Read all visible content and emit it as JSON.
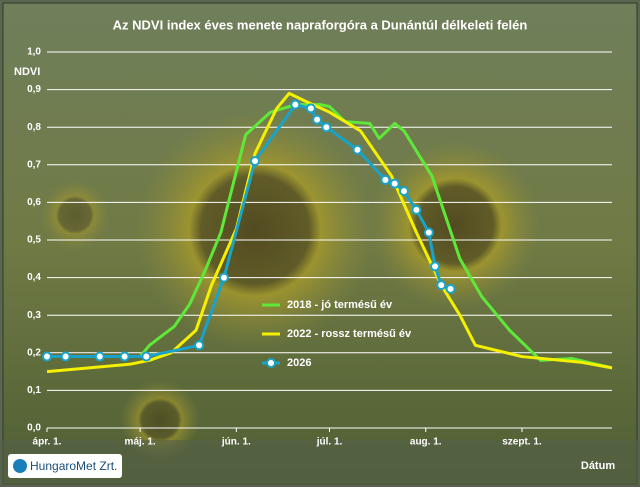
{
  "chart_data": {
    "type": "line",
    "title": "Az NDVI index éves menete napraforgóra a Dunántúl délkeleti felén",
    "y_label": "NDVI",
    "x_label": "Dátum",
    "xlim": [
      0,
      182
    ],
    "xticks": [
      {
        "value": 0,
        "label": "ápr. 1."
      },
      {
        "value": 30,
        "label": "máj. 1."
      },
      {
        "value": 61,
        "label": "jún. 1."
      },
      {
        "value": 91,
        "label": "júl. 1."
      },
      {
        "value": 122,
        "label": "aug. 1."
      },
      {
        "value": 153,
        "label": "szept. 1."
      }
    ],
    "ylim": [
      0,
      1
    ],
    "yticks": [
      {
        "value": 0,
        "label": "0,0"
      },
      {
        "value": 0.1,
        "label": "0,1"
      },
      {
        "value": 0.2,
        "label": "0,2"
      },
      {
        "value": 0.3,
        "label": "0,3"
      },
      {
        "value": 0.4,
        "label": "0,4"
      },
      {
        "value": 0.5,
        "label": "0,5"
      },
      {
        "value": 0.6,
        "label": "0,6"
      },
      {
        "value": 0.7,
        "label": "0,7"
      },
      {
        "value": 0.8,
        "label": "0,8"
      },
      {
        "value": 0.9,
        "label": "0,9"
      },
      {
        "value": 1,
        "label": "1,0"
      }
    ],
    "grid": true,
    "series": [
      {
        "name": "2018 - jó termésű év",
        "color": "#5ee83a",
        "markers": false,
        "x": [
          0,
          30,
          33,
          41,
          46,
          51,
          56,
          64,
          72,
          80,
          88,
          91,
          96,
          104,
          107,
          112,
          115,
          124,
          133,
          140,
          149,
          159,
          169,
          182
        ],
        "values": [
          0.19,
          0.19,
          0.22,
          0.27,
          0.33,
          0.42,
          0.52,
          0.78,
          0.84,
          0.86,
          0.86,
          0.855,
          0.815,
          0.81,
          0.77,
          0.81,
          0.79,
          0.67,
          0.45,
          0.35,
          0.26,
          0.18,
          0.185,
          0.16
        ]
      },
      {
        "name": "2022 - rossz termésű év",
        "color": "#f5f000",
        "markers": false,
        "x": [
          0,
          27,
          33,
          40,
          48,
          53,
          61,
          67,
          74,
          78,
          83,
          91,
          101,
          111,
          119,
          127,
          133,
          138,
          153,
          172,
          182
        ],
        "values": [
          0.15,
          0.17,
          0.18,
          0.2,
          0.26,
          0.38,
          0.53,
          0.73,
          0.85,
          0.89,
          0.87,
          0.84,
          0.79,
          0.67,
          0.52,
          0.38,
          0.3,
          0.22,
          0.19,
          0.175,
          0.16
        ]
      },
      {
        "name": "2026",
        "color": "#1aa3c8",
        "markers": true,
        "x": [
          0,
          6,
          17,
          25,
          32,
          49,
          57,
          67,
          80,
          85,
          87,
          90,
          100,
          109,
          112,
          115,
          119,
          123,
          125,
          127,
          130
        ],
        "values": [
          0.19,
          0.19,
          0.19,
          0.19,
          0.19,
          0.22,
          0.4,
          0.71,
          0.86,
          0.85,
          0.82,
          0.8,
          0.74,
          0.66,
          0.65,
          0.63,
          0.58,
          0.52,
          0.43,
          0.38,
          0.37
        ]
      }
    ]
  },
  "logo_text": "HungaroMet Zrt."
}
